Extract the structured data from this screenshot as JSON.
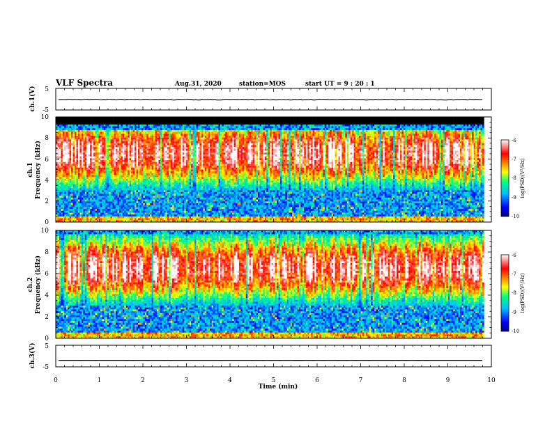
{
  "header": {
    "title": "VLF Spectra",
    "date": "Aug.31, 2020",
    "station": "station=MOS",
    "start_ut": "start UT =  9 : 20 : 1"
  },
  "chart_data": [
    {
      "type": "line",
      "panel": "ch1-waveform",
      "ylabel": "ch.1(V)",
      "yticks": [
        "5",
        "-5"
      ],
      "ylim": [
        -5,
        5
      ],
      "series": [
        {
          "values": [
            -0.2
          ]
        }
      ],
      "xlim": [
        0,
        10
      ]
    },
    {
      "type": "heatmap",
      "panel": "ch1-spectrogram",
      "ylabel_line1": "ch.1",
      "ylabel_line2": "Frequency (kHz)",
      "yticks": [
        "0",
        "2",
        "4",
        "6",
        "8",
        "10"
      ],
      "ylim": [
        0,
        10
      ],
      "xlim": [
        0,
        10
      ],
      "data_end_min": 9.83,
      "colorbar": {
        "label": "log(PSD)(V²/Hz)",
        "ticks": [
          "-6",
          "-7",
          "-8",
          "-9",
          "-10"
        ],
        "range": [
          -10,
          -6
        ]
      },
      "profile": {
        "noise_floor_khz": 0.3,
        "peak_khz": 6.5,
        "cutoff_khz": 8.8,
        "top_black_khz": 9.2
      }
    },
    {
      "type": "heatmap",
      "panel": "ch2-spectrogram",
      "ylabel_line1": "ch.2",
      "ylabel_line2": "Frequency (kHz)",
      "yticks": [
        "0",
        "2",
        "4",
        "6",
        "8",
        "10"
      ],
      "ylim": [
        0,
        10
      ],
      "xlim": [
        0,
        10
      ],
      "data_end_min": 9.83,
      "colorbar": {
        "label": "log(PSD)(V²/Hz)",
        "ticks": [
          "-6",
          "-7",
          "-8",
          "-9",
          "-10"
        ],
        "range": [
          -10,
          -6
        ]
      },
      "profile": {
        "noise_floor_khz": 0.3,
        "peak_khz": 6.5,
        "cutoff_khz": 9.6,
        "top_black_khz": 10
      }
    },
    {
      "type": "line",
      "panel": "ch3-waveform",
      "ylabel": "ch.3(V)",
      "yticks": [
        "5",
        "-5"
      ],
      "ylim": [
        -5,
        5
      ],
      "series": [
        {
          "values": [
            -2.0
          ]
        }
      ],
      "xlim": [
        0,
        10
      ],
      "xlabel": "Time (min)",
      "xticks": [
        "0",
        "1",
        "2",
        "3",
        "4",
        "5",
        "6",
        "7",
        "8",
        "9",
        "10"
      ]
    }
  ],
  "colors": {
    "background": "#ffffff",
    "axes": "#000000",
    "colormap": [
      "#00007f",
      "#0000ff",
      "#00bfff",
      "#00ff80",
      "#ffff00",
      "#ff8000",
      "#ff0000",
      "#ffffff"
    ]
  }
}
